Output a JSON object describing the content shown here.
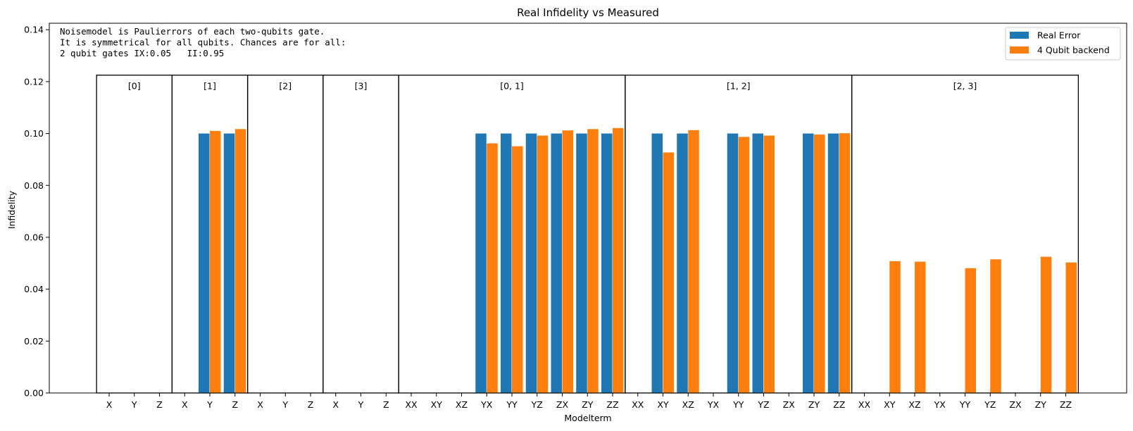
{
  "chart_data": {
    "type": "bar",
    "title": "Real Infidelity vs Measured",
    "xlabel": "Modelterm",
    "ylabel": "Infidelity",
    "ylim": [
      0,
      0.1425
    ],
    "yticks": [
      "0.00",
      "0.02",
      "0.04",
      "0.06",
      "0.08",
      "0.10",
      "0.12",
      "0.14"
    ],
    "ytick_values": [
      0,
      0.02,
      0.04,
      0.06,
      0.08,
      0.1,
      0.12,
      0.14
    ],
    "categories": [
      "X",
      "Y",
      "Z",
      "X",
      "Y",
      "Z",
      "X",
      "Y",
      "Z",
      "X",
      "Y",
      "Z",
      "XX",
      "XY",
      "XZ",
      "YX",
      "YY",
      "YZ",
      "ZX",
      "ZY",
      "ZZ",
      "XX",
      "XY",
      "XZ",
      "YX",
      "YY",
      "YZ",
      "ZX",
      "ZY",
      "ZZ",
      "XX",
      "XY",
      "XZ",
      "YX",
      "YY",
      "YZ",
      "ZX",
      "ZY",
      "ZZ"
    ],
    "series": [
      {
        "name": "Real Error",
        "color": "#1f77b4",
        "values": [
          0,
          0,
          0,
          0,
          0.1,
          0.1,
          0,
          0,
          0,
          0,
          0,
          0,
          0,
          0,
          0,
          0.1,
          0.1,
          0.1,
          0.1,
          0.1,
          0.1,
          0,
          0.1,
          0.1,
          0,
          0.1,
          0.1,
          0,
          0.1,
          0.1,
          0,
          0,
          0,
          0,
          0,
          0,
          0,
          0,
          0
        ]
      },
      {
        "name": "4 Qubit backend",
        "color": "#ff7f0e",
        "values": [
          0,
          0,
          0,
          0,
          0.101,
          0.1017,
          0,
          0,
          0,
          0,
          0,
          0,
          0,
          0,
          0,
          0.0962,
          0.0951,
          0.0992,
          0.1012,
          0.1017,
          0.1021,
          0,
          0.0927,
          0.1013,
          0,
          0.0987,
          0.0992,
          0,
          0.0996,
          0.1001,
          0,
          0.0508,
          0.0506,
          0,
          0.0481,
          0.0515,
          0,
          0.0525,
          0.0503
        ]
      }
    ],
    "groups": [
      {
        "label": "[0]",
        "start": 0,
        "count": 3
      },
      {
        "label": "[1]",
        "start": 3,
        "count": 3
      },
      {
        "label": "[2]",
        "start": 6,
        "count": 3
      },
      {
        "label": "[3]",
        "start": 9,
        "count": 3
      },
      {
        "label": "[0, 1]",
        "start": 12,
        "count": 9
      },
      {
        "label": "[1, 2]",
        "start": 21,
        "count": 9
      },
      {
        "label": "[2, 3]",
        "start": 30,
        "count": 9
      }
    ],
    "group_box_top": 0.1225,
    "annotation": [
      "Noisemodel is Paulierrors of each two-qubits gate.",
      "It is symmetrical for all qubits. Chances are for all:",
      "2 qubit gates IX:0.05   II:0.95"
    ],
    "legend": {
      "placement": "top-right",
      "entries": [
        "Real Error",
        "4 Qubit backend"
      ]
    },
    "grid": false
  }
}
